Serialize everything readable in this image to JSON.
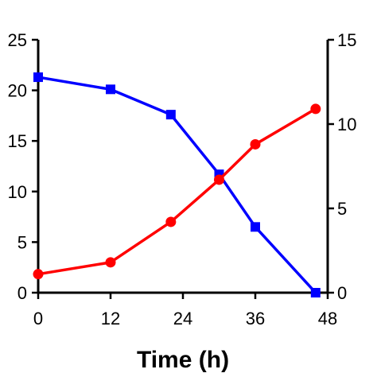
{
  "chart_data": {
    "type": "line",
    "xlabel": "Time (h)",
    "x_ticks": [
      0,
      12,
      24,
      36,
      48
    ],
    "xlim": [
      0,
      48
    ],
    "left_axis": {
      "ylim": [
        0,
        25
      ],
      "ticks": [
        0,
        5,
        10,
        15,
        20,
        25
      ]
    },
    "right_axis": {
      "ylim": [
        0,
        15
      ],
      "ticks": [
        0,
        5,
        10,
        15
      ]
    },
    "grid": false,
    "series": [
      {
        "axis": "left",
        "color": "#0000ff",
        "marker": "square",
        "x": [
          0,
          12,
          22,
          30,
          36,
          46
        ],
        "y": [
          21.3,
          20.1,
          17.6,
          11.7,
          6.5,
          0.0
        ]
      },
      {
        "axis": "right",
        "color": "#ff0000",
        "marker": "circle",
        "x": [
          0,
          12,
          22,
          30,
          36,
          46
        ],
        "y": [
          1.1,
          1.8,
          4.2,
          6.7,
          8.8,
          10.9
        ]
      }
    ]
  }
}
